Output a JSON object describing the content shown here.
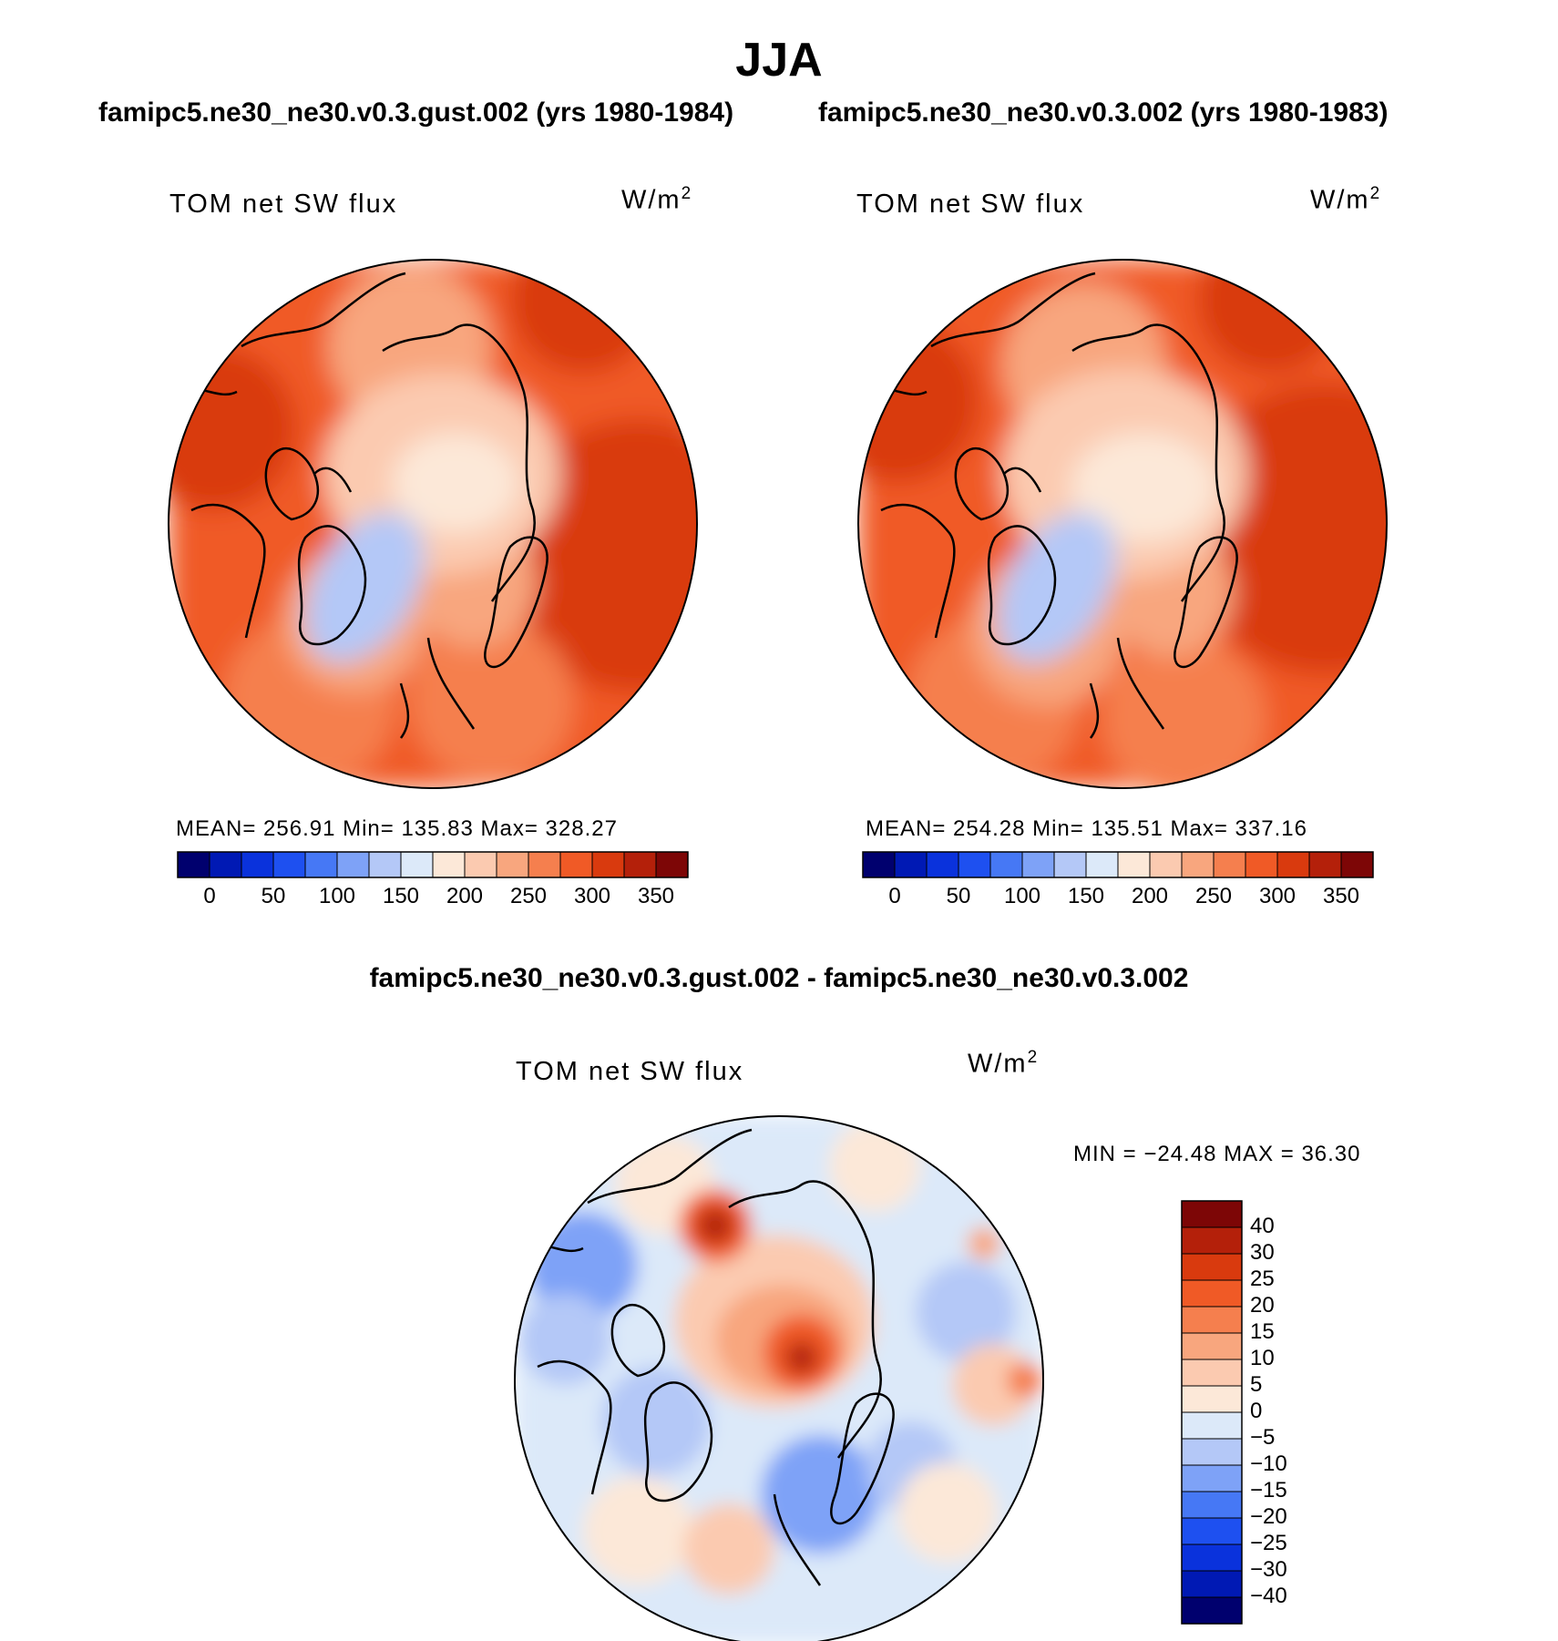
{
  "main_title": "JJA",
  "panels": [
    {
      "case_title": "famipc5.ne30_ne30.v0.3.gust.002 (yrs 1980-1984)",
      "variable": "TOM net SW flux",
      "units": "W/m",
      "units_sup": "2",
      "stats": "MEAN= 256.91   Min= 135.83   Max= 328.27"
    },
    {
      "case_title": "famipc5.ne30_ne30.v0.3.002 (yrs 1980-1983)",
      "variable": "TOM net SW flux",
      "units": "W/m",
      "units_sup": "2",
      "stats": "MEAN= 254.28   Min= 135.51   Max= 337.16"
    }
  ],
  "abs_colorbar": {
    "colors": [
      "#00006e",
      "#0019b4",
      "#0a32dc",
      "#1e50f0",
      "#4678f5",
      "#7ea2f7",
      "#b4c8f7",
      "#dce9f9",
      "#fce8d8",
      "#fbcab0",
      "#f8a67e",
      "#f57f4e",
      "#f05a26",
      "#d93a0e",
      "#b4200a",
      "#7d0606"
    ],
    "tick_labels": [
      "0",
      "50",
      "100",
      "150",
      "200",
      "250",
      "300",
      "350"
    ]
  },
  "diff_panel": {
    "title": "famipc5.ne30_ne30.v0.3.gust.002 - famipc5.ne30_ne30.v0.3.002",
    "variable": "TOM net SW flux",
    "units": "W/m",
    "units_sup": "2",
    "minmax": "MIN = −24.48 MAX =   36.30",
    "colorbar": {
      "colors_top_to_bottom": [
        "#7d0606",
        "#b4200a",
        "#d93a0e",
        "#f05a26",
        "#f57f4e",
        "#f8a67e",
        "#fbcab0",
        "#fce8d8",
        "#dce9f9",
        "#b4c8f7",
        "#7ea2f7",
        "#4678f5",
        "#1e50f0",
        "#0a32dc",
        "#0019b4",
        "#00006e"
      ],
      "tick_labels": [
        "40",
        "30",
        "25",
        "20",
        "15",
        "10",
        "5",
        "0",
        "−5",
        "−10",
        "−15",
        "−20",
        "−25",
        "−30",
        "−40"
      ]
    }
  }
}
